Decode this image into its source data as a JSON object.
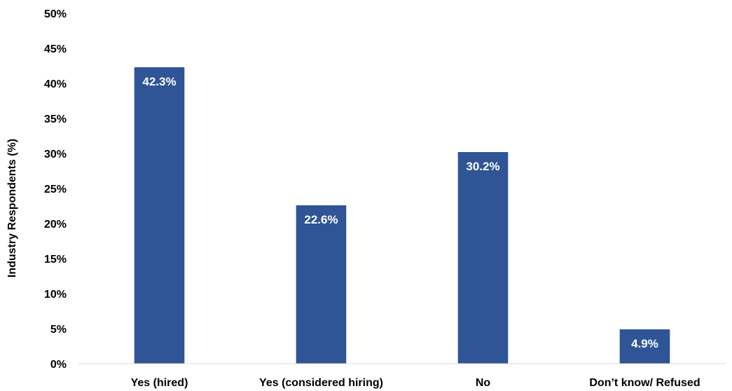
{
  "chart_data": {
    "type": "bar",
    "title": "",
    "xlabel": "",
    "ylabel": "Industry Respondents (%)",
    "categories": [
      "Yes (hired)",
      "Yes (considered hiring)",
      "No",
      "Don’t know/ Refused"
    ],
    "values": [
      42.3,
      22.6,
      30.2,
      4.9
    ],
    "data_labels": [
      "42.3%",
      "22.6%",
      "30.2%",
      "4.9%"
    ],
    "ylim": [
      0,
      50
    ],
    "yticks": [
      0,
      5,
      10,
      15,
      20,
      25,
      30,
      35,
      40,
      45,
      50
    ],
    "ytick_labels": [
      "0%",
      "5%",
      "10%",
      "15%",
      "20%",
      "25%",
      "30%",
      "35%",
      "40%",
      "45%",
      "50%"
    ],
    "grid": false,
    "legend": "none",
    "bar_color": "#2F5597",
    "data_label_color": "#FFFFFF"
  }
}
